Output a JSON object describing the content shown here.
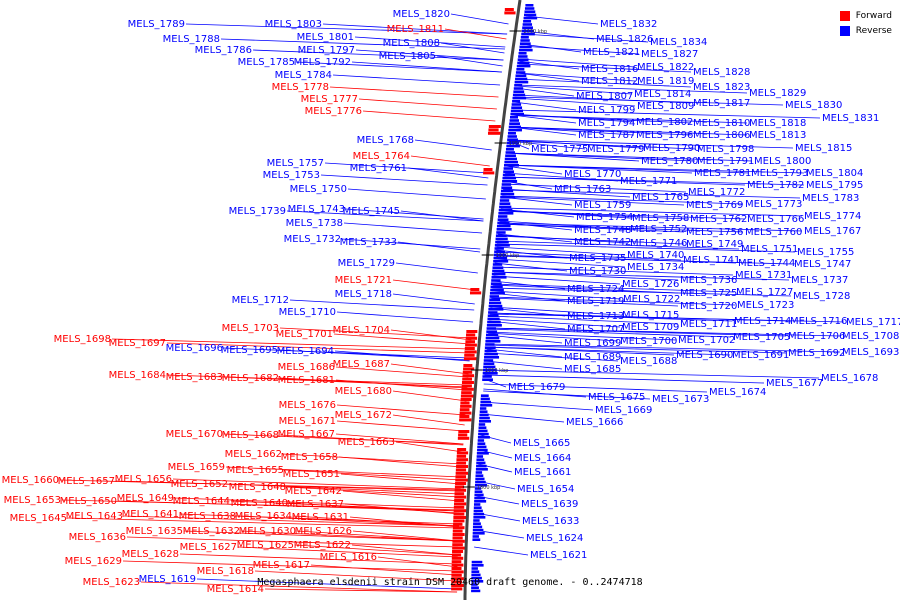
{
  "caption": "Megasphaera elsdenii strain DSM 20460 draft genome. - 0..2474718",
  "legend": {
    "forward_label": "Forward",
    "reverse_label": "Reverse",
    "forward_color": "#ff0000",
    "reverse_color": "#0000ff"
  },
  "scale_ticks": [
    "2000 kbp",
    "1950 kbp",
    "1900 kbp",
    "1850 kbp",
    "1800 kbp"
  ],
  "labels": [
    {
      "t": "MELS_1820",
      "s": "r"
    },
    {
      "t": "MELS_1789",
      "s": "r"
    },
    {
      "t": "MELS_1803",
      "s": "r"
    },
    {
      "t": "MELS_1811",
      "s": "f"
    },
    {
      "t": "MELS_1801",
      "s": "r"
    },
    {
      "t": "MELS_1788",
      "s": "r"
    },
    {
      "t": "MELS_1808",
      "s": "r"
    },
    {
      "t": "MELS_1797",
      "s": "r"
    },
    {
      "t": "MELS_1786",
      "s": "r"
    },
    {
      "t": "MELS_1805",
      "s": "r"
    },
    {
      "t": "MELS_1785",
      "s": "r"
    },
    {
      "t": "MELS_1792",
      "s": "r"
    },
    {
      "t": "MELS_1784",
      "s": "r"
    },
    {
      "t": "MELS_1778",
      "s": "f"
    },
    {
      "t": "MELS_1777",
      "s": "f"
    },
    {
      "t": "MELS_1776",
      "s": "f"
    },
    {
      "t": "MELS_1768",
      "s": "r"
    },
    {
      "t": "MELS_1764",
      "s": "f"
    },
    {
      "t": "MELS_1757",
      "s": "r"
    },
    {
      "t": "MELS_1761",
      "s": "r"
    },
    {
      "t": "MELS_1753",
      "s": "r"
    },
    {
      "t": "MELS_1750",
      "s": "r"
    },
    {
      "t": "MELS_1739",
      "s": "r"
    },
    {
      "t": "MELS_1743",
      "s": "r"
    },
    {
      "t": "MELS_1745",
      "s": "r"
    },
    {
      "t": "MELS_1738",
      "s": "r"
    },
    {
      "t": "MELS_1732",
      "s": "r"
    },
    {
      "t": "MELS_1733",
      "s": "r"
    },
    {
      "t": "MELS_1729",
      "s": "r"
    },
    {
      "t": "MELS_1721",
      "s": "f"
    },
    {
      "t": "MELS_1718",
      "s": "r"
    },
    {
      "t": "MELS_1712",
      "s": "r"
    },
    {
      "t": "MELS_1710",
      "s": "r"
    },
    {
      "t": "MELS_1703",
      "s": "f"
    },
    {
      "t": "MELS_1701",
      "s": "f"
    },
    {
      "t": "MELS_1704",
      "s": "f"
    },
    {
      "t": "MELS_1698",
      "s": "f"
    },
    {
      "t": "MELS_1697",
      "s": "f"
    },
    {
      "t": "MELS_1696",
      "s": "r"
    },
    {
      "t": "MELS_1695",
      "s": "r"
    },
    {
      "t": "MELS_1694",
      "s": "r"
    },
    {
      "t": "MELS_1686",
      "s": "f"
    },
    {
      "t": "MELS_1687",
      "s": "f"
    },
    {
      "t": "MELS_1684",
      "s": "f"
    },
    {
      "t": "MELS_1683",
      "s": "f"
    },
    {
      "t": "MELS_1682",
      "s": "f"
    },
    {
      "t": "MELS_1681",
      "s": "f"
    },
    {
      "t": "MELS_1680",
      "s": "f"
    },
    {
      "t": "MELS_1676",
      "s": "f"
    },
    {
      "t": "MELS_1672",
      "s": "f"
    },
    {
      "t": "MELS_1671",
      "s": "f"
    },
    {
      "t": "MELS_1670",
      "s": "f"
    },
    {
      "t": "MELS_1668",
      "s": "f"
    },
    {
      "t": "MELS_1667",
      "s": "f"
    },
    {
      "t": "MELS_1663",
      "s": "f"
    },
    {
      "t": "MELS_1662",
      "s": "f"
    },
    {
      "t": "MELS_1658",
      "s": "f"
    },
    {
      "t": "MELS_1659",
      "s": "f"
    },
    {
      "t": "MELS_1655",
      "s": "f"
    },
    {
      "t": "MELS_1651",
      "s": "f"
    },
    {
      "t": "MELS_1660",
      "s": "f"
    },
    {
      "t": "MELS_1657",
      "s": "f"
    },
    {
      "t": "MELS_1656",
      "s": "f"
    },
    {
      "t": "MELS_1652",
      "s": "f"
    },
    {
      "t": "MELS_1648",
      "s": "f"
    },
    {
      "t": "MELS_1642",
      "s": "f"
    },
    {
      "t": "MELS_1653",
      "s": "f"
    },
    {
      "t": "MELS_1650",
      "s": "f"
    },
    {
      "t": "MELS_1649",
      "s": "f"
    },
    {
      "t": "MELS_1644",
      "s": "f"
    },
    {
      "t": "MELS_1640",
      "s": "f"
    },
    {
      "t": "MELS_1637",
      "s": "f"
    },
    {
      "t": "MELS_1645",
      "s": "f"
    },
    {
      "t": "MELS_1643",
      "s": "f"
    },
    {
      "t": "MELS_1641",
      "s": "f"
    },
    {
      "t": "MELS_1638",
      "s": "f"
    },
    {
      "t": "MELS_1634",
      "s": "f"
    },
    {
      "t": "MELS_1631",
      "s": "f"
    },
    {
      "t": "MELS_1636",
      "s": "f"
    },
    {
      "t": "MELS_1635",
      "s": "f"
    },
    {
      "t": "MELS_1632",
      "s": "f"
    },
    {
      "t": "MELS_1630",
      "s": "f"
    },
    {
      "t": "MELS_1626",
      "s": "f"
    },
    {
      "t": "MELS_1627",
      "s": "f"
    },
    {
      "t": "MELS_1625",
      "s": "f"
    },
    {
      "t": "MELS_1622",
      "s": "f"
    },
    {
      "t": "MELS_1628",
      "s": "f"
    },
    {
      "t": "MELS_1629",
      "s": "f"
    },
    {
      "t": "MELS_1616",
      "s": "f"
    },
    {
      "t": "MELS_1618",
      "s": "f"
    },
    {
      "t": "MELS_1617",
      "s": "f"
    },
    {
      "t": "MELS_1623",
      "s": "f"
    },
    {
      "t": "MELS_1619",
      "s": "r"
    },
    {
      "t": "MELS_1614",
      "s": "f"
    },
    {
      "t": "MELS_1832",
      "s": "r"
    },
    {
      "t": "MELS_1826",
      "s": "r"
    },
    {
      "t": "MELS_1834",
      "s": "r"
    },
    {
      "t": "MELS_1821",
      "s": "r"
    },
    {
      "t": "MELS_1827",
      "s": "r"
    },
    {
      "t": "MELS_1816",
      "s": "r"
    },
    {
      "t": "MELS_1822",
      "s": "r"
    },
    {
      "t": "MELS_1828",
      "s": "r"
    },
    {
      "t": "MELS_1812",
      "s": "r"
    },
    {
      "t": "MELS_1819",
      "s": "r"
    },
    {
      "t": "MELS_1823",
      "s": "r"
    },
    {
      "t": "MELS_1829",
      "s": "r"
    },
    {
      "t": "MELS_1807",
      "s": "r"
    },
    {
      "t": "MELS_1814",
      "s": "r"
    },
    {
      "t": "MELS_1830",
      "s": "r"
    },
    {
      "t": "MELS_1809",
      "s": "r"
    },
    {
      "t": "MELS_1817",
      "s": "r"
    },
    {
      "t": "MELS_1799",
      "s": "r"
    },
    {
      "t": "MELS_1831",
      "s": "r"
    },
    {
      "t": "MELS_1794",
      "s": "r"
    },
    {
      "t": "MELS_1802",
      "s": "r"
    },
    {
      "t": "MELS_1810",
      "s": "r"
    },
    {
      "t": "MELS_1818",
      "s": "r"
    },
    {
      "t": "MELS_1787",
      "s": "r"
    },
    {
      "t": "MELS_1796",
      "s": "r"
    },
    {
      "t": "MELS_1806",
      "s": "r"
    },
    {
      "t": "MELS_1813",
      "s": "r"
    },
    {
      "t": "MELS_1775",
      "s": "r"
    },
    {
      "t": "MELS_1779",
      "s": "r"
    },
    {
      "t": "MELS_1790",
      "s": "r"
    },
    {
      "t": "MELS_1798",
      "s": "r"
    },
    {
      "t": "MELS_1815",
      "s": "r"
    },
    {
      "t": "MELS_1780",
      "s": "r"
    },
    {
      "t": "MELS_1791",
      "s": "r"
    },
    {
      "t": "MELS_1800",
      "s": "r"
    },
    {
      "t": "MELS_1781",
      "s": "r"
    },
    {
      "t": "MELS_1793",
      "s": "r"
    },
    {
      "t": "MELS_1804",
      "s": "r"
    },
    {
      "t": "MELS_1770",
      "s": "r"
    },
    {
      "t": "MELS_1771",
      "s": "r"
    },
    {
      "t": "MELS_1782",
      "s": "r"
    },
    {
      "t": "MELS_1795",
      "s": "r"
    },
    {
      "t": "MELS_1763",
      "s": "r"
    },
    {
      "t": "MELS_1772",
      "s": "r"
    },
    {
      "t": "MELS_1765",
      "s": "r"
    },
    {
      "t": "MELS_1783",
      "s": "r"
    },
    {
      "t": "MELS_1759",
      "s": "r"
    },
    {
      "t": "MELS_1769",
      "s": "r"
    },
    {
      "t": "MELS_1773",
      "s": "r"
    },
    {
      "t": "MELS_1754",
      "s": "r"
    },
    {
      "t": "MELS_1758",
      "s": "r"
    },
    {
      "t": "MELS_1762",
      "s": "r"
    },
    {
      "t": "MELS_1766",
      "s": "r"
    },
    {
      "t": "MELS_1774",
      "s": "r"
    },
    {
      "t": "MELS_1748",
      "s": "r"
    },
    {
      "t": "MELS_1752",
      "s": "r"
    },
    {
      "t": "MELS_1756",
      "s": "r"
    },
    {
      "t": "MELS_1760",
      "s": "r"
    },
    {
      "t": "MELS_1767",
      "s": "r"
    },
    {
      "t": "MELS_1742",
      "s": "r"
    },
    {
      "t": "MELS_1746",
      "s": "r"
    },
    {
      "t": "MELS_1749",
      "s": "r"
    },
    {
      "t": "MELS_1751",
      "s": "r"
    },
    {
      "t": "MELS_1755",
      "s": "r"
    },
    {
      "t": "MELS_1735",
      "s": "r"
    },
    {
      "t": "MELS_1740",
      "s": "r"
    },
    {
      "t": "MELS_1741",
      "s": "r"
    },
    {
      "t": "MELS_1744",
      "s": "r"
    },
    {
      "t": "MELS_1747",
      "s": "r"
    },
    {
      "t": "MELS_1730",
      "s": "r"
    },
    {
      "t": "MELS_1734",
      "s": "r"
    },
    {
      "t": "MELS_1736",
      "s": "r"
    },
    {
      "t": "MELS_1731",
      "s": "r"
    },
    {
      "t": "MELS_1737",
      "s": "r"
    },
    {
      "t": "MELS_1724",
      "s": "r"
    },
    {
      "t": "MELS_1726",
      "s": "r"
    },
    {
      "t": "MELS_1725",
      "s": "r"
    },
    {
      "t": "MELS_1727",
      "s": "r"
    },
    {
      "t": "MELS_1728",
      "s": "r"
    },
    {
      "t": "MELS_1719",
      "s": "r"
    },
    {
      "t": "MELS_1722",
      "s": "r"
    },
    {
      "t": "MELS_1720",
      "s": "r"
    },
    {
      "t": "MELS_1723",
      "s": "r"
    },
    {
      "t": "MELS_1713",
      "s": "r"
    },
    {
      "t": "MELS_1715",
      "s": "r"
    },
    {
      "t": "MELS_1714",
      "s": "r"
    },
    {
      "t": "MELS_1716",
      "s": "r"
    },
    {
      "t": "MELS_1717",
      "s": "r"
    },
    {
      "t": "MELS_1707",
      "s": "r"
    },
    {
      "t": "MELS_1709",
      "s": "r"
    },
    {
      "t": "MELS_1711",
      "s": "r"
    },
    {
      "t": "MELS_1699",
      "s": "r"
    },
    {
      "t": "MELS_1700",
      "s": "r"
    },
    {
      "t": "MELS_1702",
      "s": "r"
    },
    {
      "t": "MELS_1705",
      "s": "r"
    },
    {
      "t": "MELS_1706",
      "s": "r"
    },
    {
      "t": "MELS_1708",
      "s": "r"
    },
    {
      "t": "MELS_1689",
      "s": "r"
    },
    {
      "t": "MELS_1688",
      "s": "r"
    },
    {
      "t": "MELS_1690",
      "s": "r"
    },
    {
      "t": "MELS_1691",
      "s": "r"
    },
    {
      "t": "MELS_1692",
      "s": "r"
    },
    {
      "t": "MELS_1693",
      "s": "r"
    },
    {
      "t": "MELS_1685",
      "s": "r"
    },
    {
      "t": "MELS_1678",
      "s": "r"
    },
    {
      "t": "MELS_1677",
      "s": "r"
    },
    {
      "t": "MELS_1679",
      "s": "r"
    },
    {
      "t": "MELS_1674",
      "s": "r"
    },
    {
      "t": "MELS_1675",
      "s": "r"
    },
    {
      "t": "MELS_1673",
      "s": "r"
    },
    {
      "t": "MELS_1669",
      "s": "r"
    },
    {
      "t": "MELS_1666",
      "s": "r"
    },
    {
      "t": "MELS_1665",
      "s": "r"
    },
    {
      "t": "MELS_1664",
      "s": "r"
    },
    {
      "t": "MELS_1661",
      "s": "r"
    },
    {
      "t": "MELS_1654",
      "s": "r"
    },
    {
      "t": "MELS_1639",
      "s": "r"
    },
    {
      "t": "MELS_1633",
      "s": "r"
    },
    {
      "t": "MELS_1624",
      "s": "r"
    },
    {
      "t": "MELS_1621",
      "s": "r"
    }
  ]
}
